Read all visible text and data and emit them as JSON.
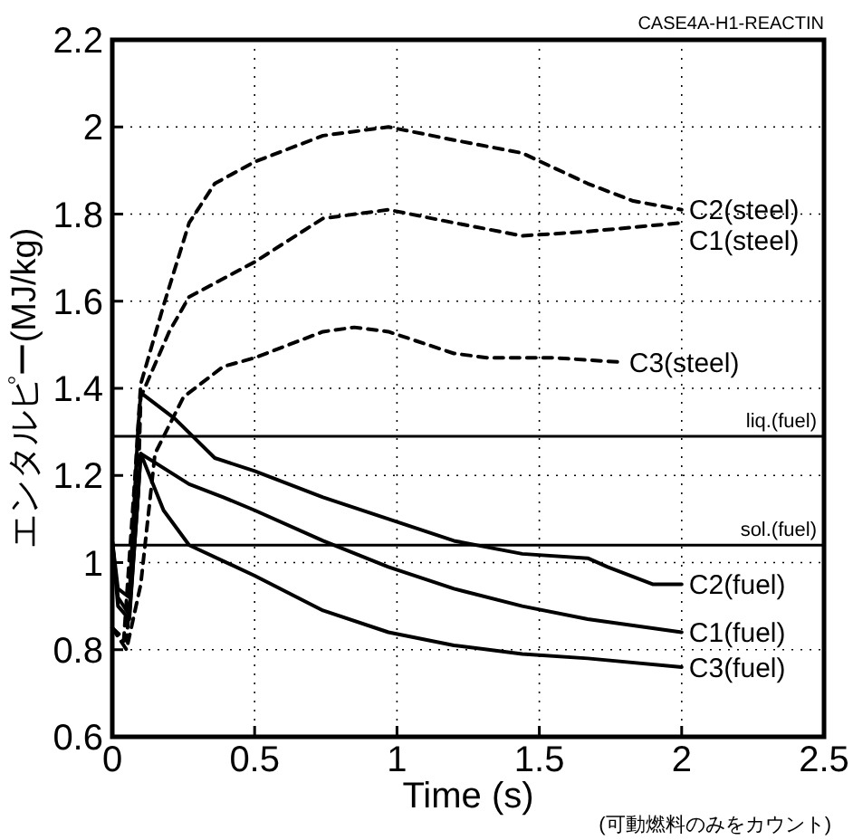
{
  "chart_data": {
    "type": "line",
    "title": "CASE4A-H1-REACTIN",
    "xlabel": "Time (s)",
    "ylabel": "エンタルピー(MJ/kg)",
    "xlim": [
      0,
      2.5
    ],
    "ylim": [
      0.6,
      2.2
    ],
    "xticks": [
      0,
      0.5,
      1,
      1.5,
      2,
      2.5
    ],
    "yticks": [
      0.6,
      0.8,
      1,
      1.2,
      1.4,
      1.6,
      1.8,
      2,
      2.2
    ],
    "grid": true,
    "legend": false,
    "marker": "none",
    "series": [
      {
        "name": "C2(steel)",
        "color": "#000000",
        "line_style": "dashed",
        "x": [
          0,
          0.04,
          0.08,
          0.1,
          0.18,
          0.27,
          0.36,
          0.5,
          0.74,
          0.97,
          1.2,
          1.44,
          1.67,
          1.83,
          2.0
        ],
        "values": [
          0.85,
          0.82,
          1.2,
          1.41,
          1.59,
          1.78,
          1.87,
          1.92,
          1.98,
          2.0,
          1.97,
          1.94,
          1.87,
          1.83,
          1.81
        ]
      },
      {
        "name": "C1(steel)",
        "color": "#000000",
        "line_style": "dashed",
        "x": [
          0,
          0.05,
          0.09,
          0.1,
          0.2,
          0.27,
          0.5,
          0.62,
          0.74,
          0.97,
          1.2,
          1.44,
          1.67,
          2.0
        ],
        "values": [
          0.85,
          0.82,
          1.15,
          1.38,
          1.53,
          1.61,
          1.69,
          1.74,
          1.79,
          1.81,
          1.78,
          1.75,
          1.76,
          1.78
        ]
      },
      {
        "name": "C3(steel)",
        "color": "#000000",
        "line_style": "dashed",
        "x": [
          0,
          0.05,
          0.1,
          0.15,
          0.25,
          0.39,
          0.5,
          0.74,
          0.85,
          0.97,
          1.2,
          1.32,
          1.55,
          1.79
        ],
        "values": [
          0.85,
          0.8,
          0.95,
          1.25,
          1.38,
          1.45,
          1.47,
          1.53,
          1.54,
          1.53,
          1.48,
          1.47,
          1.47,
          1.46
        ]
      },
      {
        "name": "C2(fuel)",
        "color": "#000000",
        "line_style": "solid",
        "x": [
          0,
          0.02,
          0.06,
          0.09,
          0.1,
          0.22,
          0.36,
          0.5,
          0.74,
          0.97,
          1.2,
          1.44,
          1.67,
          1.74,
          1.9,
          2.0
        ],
        "values": [
          1.05,
          0.94,
          0.92,
          1.3,
          1.39,
          1.33,
          1.24,
          1.21,
          1.15,
          1.1,
          1.05,
          1.02,
          1.01,
          0.99,
          0.95,
          0.95
        ]
      },
      {
        "name": "C1(fuel)",
        "color": "#000000",
        "line_style": "solid",
        "x": [
          0,
          0.02,
          0.06,
          0.09,
          0.1,
          0.27,
          0.39,
          0.5,
          0.74,
          0.97,
          1.2,
          1.44,
          1.67,
          2.0
        ],
        "values": [
          1.05,
          0.9,
          0.87,
          1.15,
          1.25,
          1.18,
          1.15,
          1.12,
          1.05,
          0.99,
          0.94,
          0.9,
          0.87,
          0.84
        ]
      },
      {
        "name": "C3(fuel)",
        "color": "#000000",
        "line_style": "solid",
        "x": [
          0,
          0.02,
          0.06,
          0.09,
          0.1,
          0.18,
          0.27,
          0.5,
          0.62,
          0.74,
          0.97,
          1.2,
          1.44,
          1.67,
          2.0
        ],
        "values": [
          1.05,
          0.92,
          0.88,
          1.15,
          1.25,
          1.12,
          1.04,
          0.97,
          0.93,
          0.89,
          0.84,
          0.81,
          0.79,
          0.78,
          0.76
        ]
      }
    ],
    "ref_lines": [
      {
        "axis": "y",
        "value": 1.29,
        "label": "liq.(fuel)",
        "color": "#000000",
        "line_style": "solid"
      },
      {
        "axis": "y",
        "value": 1.04,
        "label": "sol.(fuel)",
        "color": "#000000",
        "line_style": "solid"
      }
    ],
    "annotations": [
      "(可動燃料のみをカウント)"
    ]
  }
}
